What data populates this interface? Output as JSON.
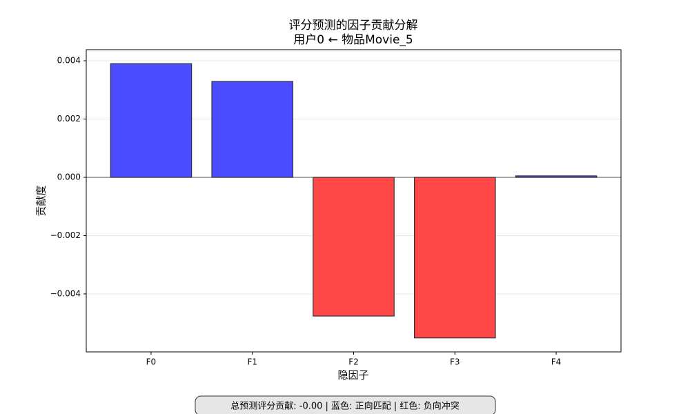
{
  "chart_data": {
    "type": "bar",
    "title": [
      "评分预测的因子贡献分解",
      "用户0 ← 物品Movie_5"
    ],
    "xlabel": "隐因子",
    "ylabel": "贡献度",
    "categories": [
      "F0",
      "F1",
      "F2",
      "F3",
      "F4"
    ],
    "values": [
      0.0039,
      0.00329,
      -0.00476,
      -0.00551,
      5e-05
    ],
    "colors": [
      "#4b4bff",
      "#4b4bff",
      "#ff4848",
      "#ff4848",
      "#4b4bff"
    ],
    "ylim": [
      -0.00599,
      0.00438
    ],
    "yticks": [
      {
        "value": -0.004,
        "label": "−0.004"
      },
      {
        "value": -0.002,
        "label": "−0.002"
      },
      {
        "value": 0,
        "label": "0.000"
      },
      {
        "value": 0.002,
        "label": "0.002"
      },
      {
        "value": 0.004,
        "label": "0.004"
      }
    ],
    "grid": true,
    "annotation": "总预测评分贡献: -0.00 | 蓝色: 正向匹配 | 红色: 负向冲突"
  }
}
